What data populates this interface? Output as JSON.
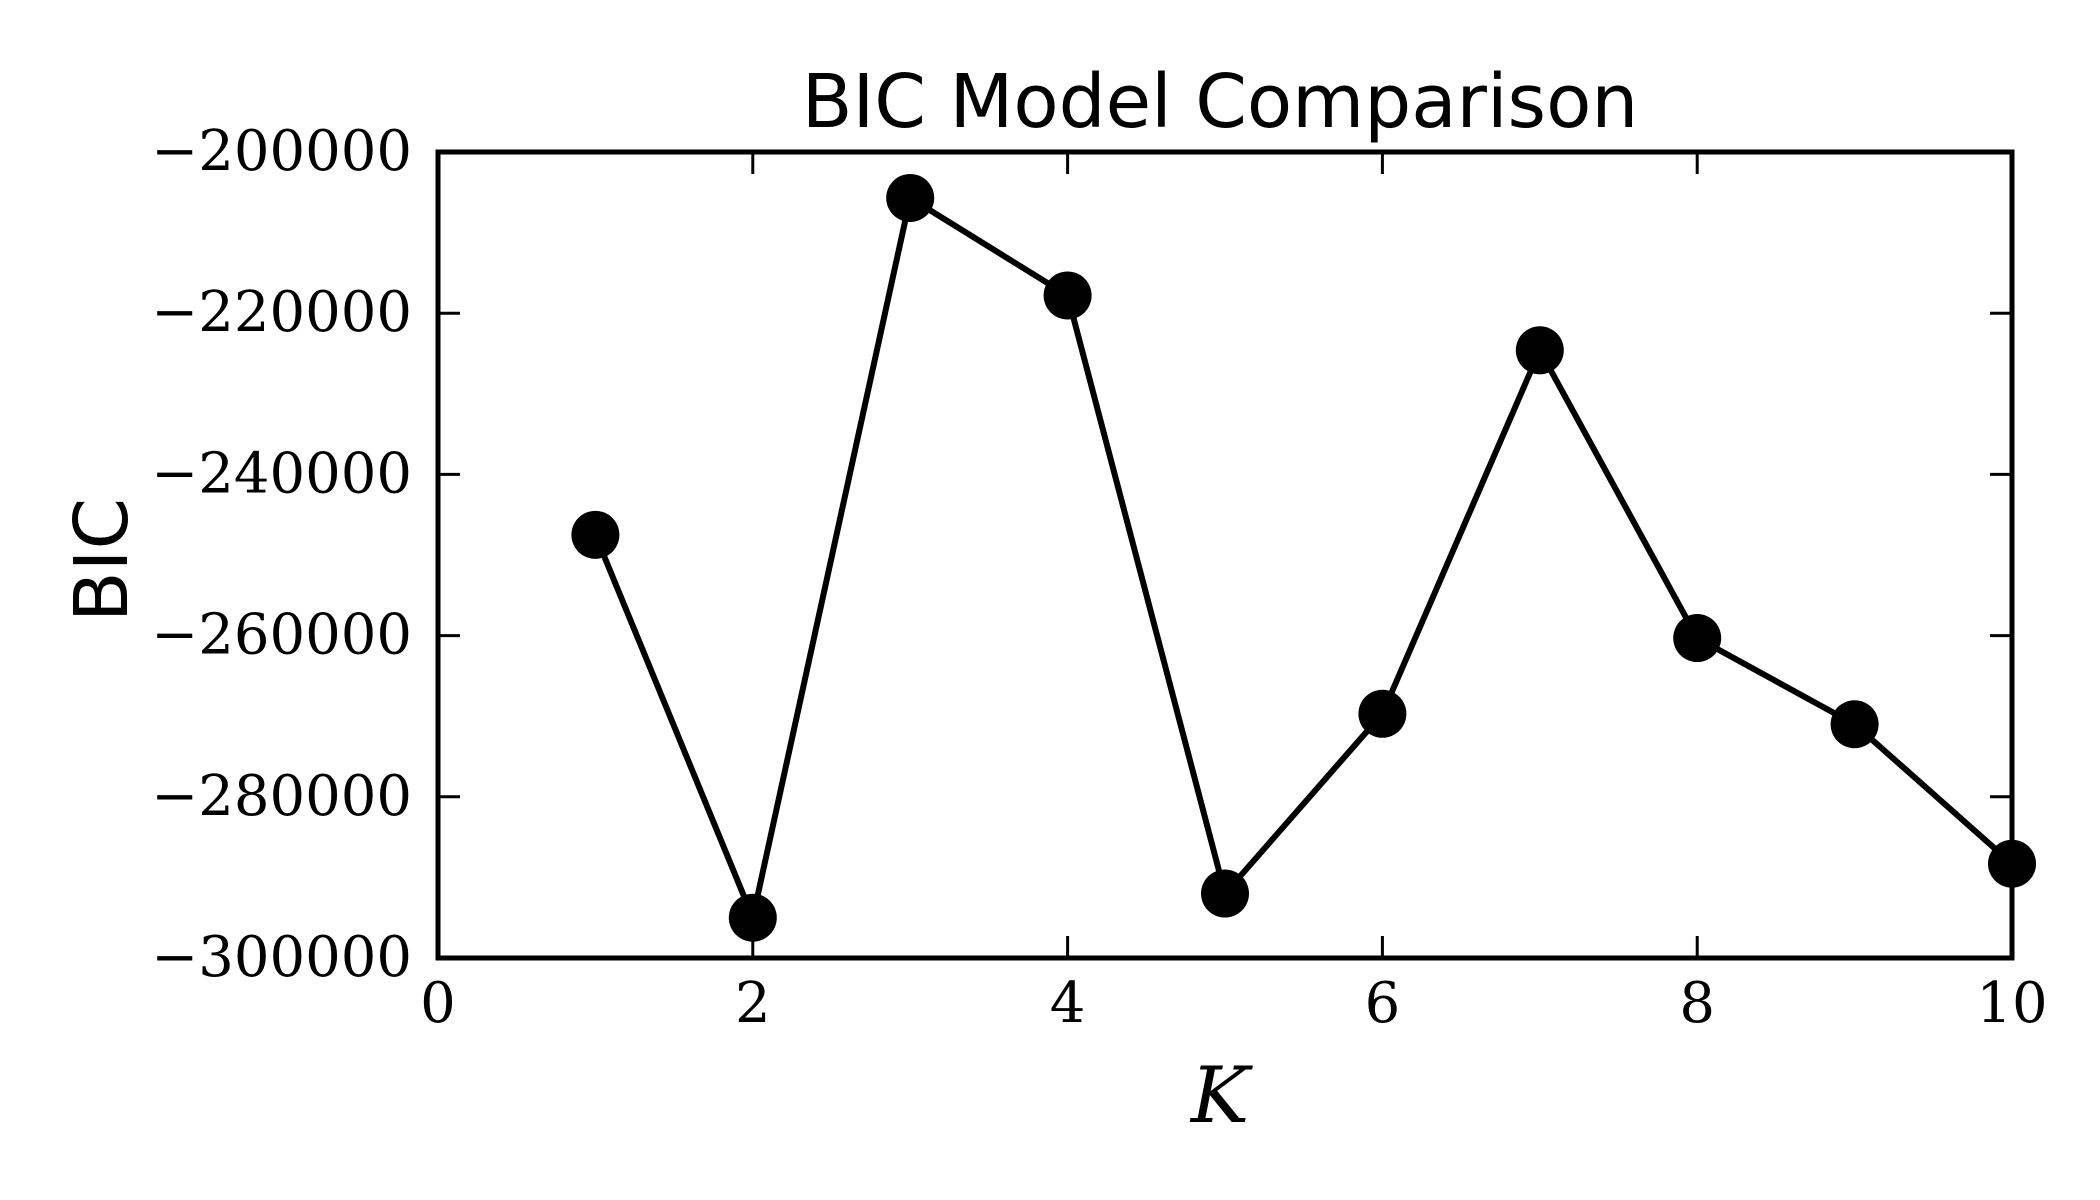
{
  "chart_data": {
    "type": "line",
    "title": "BIC Model Comparison",
    "xlabel": "K",
    "ylabel": "BIC",
    "xlim": [
      0,
      10
    ],
    "ylim": [
      -300000,
      -200000
    ],
    "xticks": [
      0,
      2,
      4,
      6,
      8,
      10
    ],
    "yticks": [
      -300000,
      -280000,
      -260000,
      -240000,
      -220000,
      -200000
    ],
    "xtick_labels": [
      "0",
      "2",
      "4",
      "6",
      "8",
      "10"
    ],
    "ytick_labels": [
      "−300000",
      "−280000",
      "−260000",
      "−240000",
      "−220000",
      "−200000"
    ],
    "grid": false,
    "legend": "none",
    "x": [
      1,
      2,
      3,
      4,
      5,
      6,
      7,
      8,
      9,
      10
    ],
    "series": [
      {
        "values": [
          -247500,
          -295000,
          -205700,
          -217800,
          -292000,
          -269700,
          -224600,
          -260300,
          -271000,
          -288300
        ],
        "color": "#000000",
        "marker": "circle"
      }
    ]
  }
}
